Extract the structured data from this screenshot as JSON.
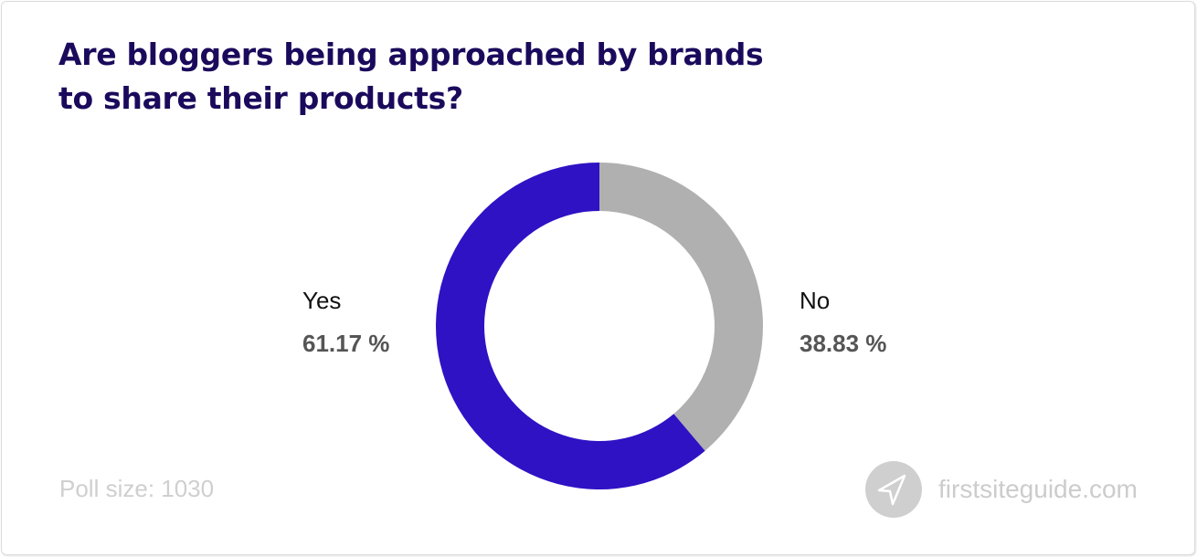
{
  "title": {
    "line1": "Are bloggers being approached by brands",
    "line2": "to share their products?"
  },
  "footer": {
    "poll_size": "Poll size: 1030",
    "brand": "firstsiteguide.com",
    "brand_icon": "paper-plane-icon"
  },
  "labels": {
    "yes": {
      "name": "Yes",
      "value": "61.17 %"
    },
    "no": {
      "name": "No",
      "value": "38.83 %"
    }
  },
  "colors": {
    "yes": "#2e12c4",
    "no": "#b0b0b0",
    "title": "#1b0a5c"
  },
  "chart_data": {
    "type": "pie",
    "subtype": "donut",
    "title": "Are bloggers being approached by brands to share their products?",
    "categories": [
      "Yes",
      "No"
    ],
    "values": [
      61.17,
      38.83
    ],
    "unit": "%",
    "colors": [
      "#2e12c4",
      "#b0b0b0"
    ],
    "annotations": [
      "Poll size: 1030"
    ],
    "legend": "inline labels (Yes left, No right)"
  }
}
